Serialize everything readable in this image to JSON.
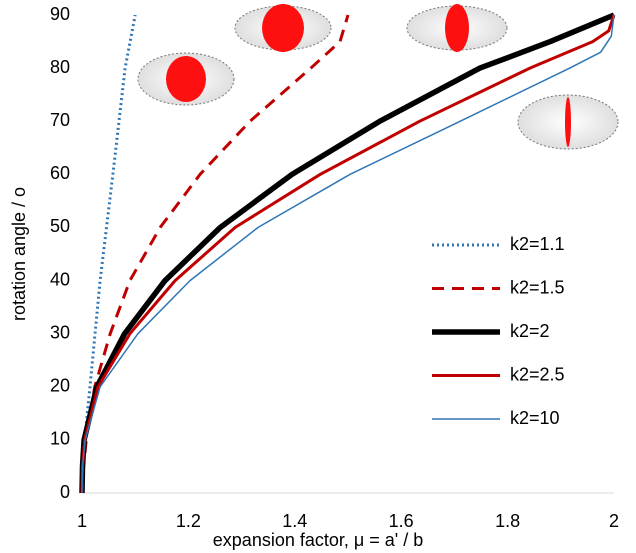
{
  "chart_data": {
    "type": "line",
    "x_label": "expansion factor, μ = a' / b",
    "y_label": "rotation angle / o",
    "xlim": [
      1,
      2
    ],
    "xticks": [
      1,
      1.2,
      1.4,
      1.6,
      1.8,
      2
    ],
    "ylim": [
      0,
      90
    ],
    "yticks": [
      0,
      10,
      20,
      30,
      40,
      50,
      60,
      70,
      80,
      90
    ],
    "grid": false,
    "legend": "right",
    "series": [
      {
        "name": "k2=1.1",
        "color": "#2e75b6",
        "line_style": "dotted",
        "x": [
          1,
          1.005,
          1.015,
          1.034,
          1.058,
          1.081,
          1.1
        ],
        "values": [
          0,
          10,
          20,
          40,
          60,
          80,
          90
        ]
      },
      {
        "name": "k2=1.5",
        "color": "#c00000",
        "line_style": "dashed",
        "x": [
          1,
          1.003,
          1.01,
          1.024,
          1.053,
          1.09,
          1.147,
          1.222,
          1.316,
          1.43,
          1.485,
          1.5
        ],
        "values": [
          0,
          5,
          12,
          20,
          30,
          40,
          50,
          60,
          70,
          80,
          85,
          90
        ]
      },
      {
        "name": "k2=2",
        "color": "#000000",
        "line_style": "solid",
        "x": [
          1,
          1.001,
          1.004,
          1.028,
          1.08,
          1.156,
          1.26,
          1.395,
          1.56,
          1.748,
          1.88,
          2
        ],
        "values": [
          0,
          5,
          10,
          20,
          30,
          40,
          50,
          60,
          70,
          80,
          85,
          90
        ]
      },
      {
        "name": "k2=2.5",
        "color": "#c00000",
        "line_style": "solid",
        "x": [
          1,
          1.001,
          1.005,
          1.03,
          1.09,
          1.175,
          1.288,
          1.448,
          1.635,
          1.842,
          1.96,
          1.99,
          2
        ],
        "values": [
          0,
          5,
          10,
          20,
          30,
          40,
          50,
          60,
          70,
          80,
          85,
          87,
          90
        ]
      },
      {
        "name": "k2=10",
        "color": "#2e75b6",
        "line_style": "solid",
        "x": [
          1,
          1.001,
          1.006,
          1.034,
          1.105,
          1.203,
          1.331,
          1.504,
          1.711,
          1.917,
          1.975,
          1.995,
          2
        ],
        "values": [
          0,
          5,
          10,
          20,
          30,
          40,
          50,
          60,
          70,
          80,
          83,
          86,
          90
        ]
      }
    ]
  }
}
